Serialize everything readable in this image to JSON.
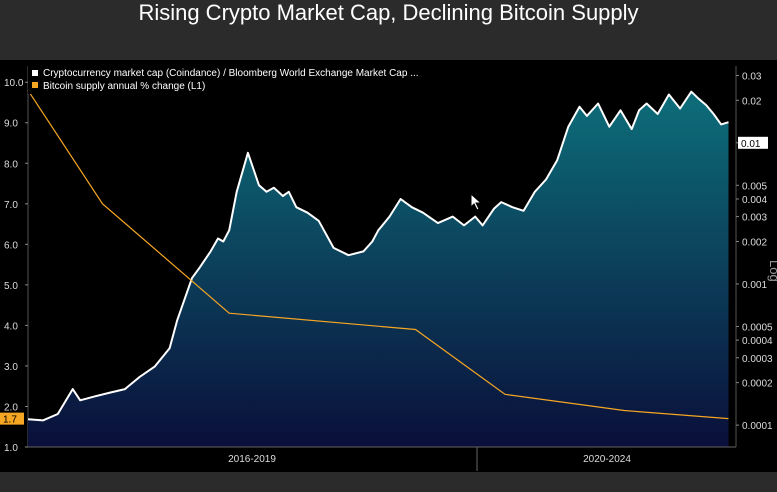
{
  "title": "Rising Crypto Market Cap, Declining Bitcoin Supply",
  "colors": {
    "background": "#000000",
    "page": "#2b2b2b",
    "ratio_line": "#ffffff",
    "ratio_fill_top": "#0d6e7a",
    "ratio_fill_bottom": "#0a0f3a",
    "supply_line": "#f5a623",
    "last_value_badge": "#f5a623"
  },
  "chart_data": {
    "type": "area",
    "title": "Rising Crypto Market Cap, Declining Bitcoin Supply",
    "legend": {
      "placement": "top-left",
      "entries": [
        "Cryptocurrency market cap (Coindance) / Bloomberg World Exchange Market Cap ...",
        "Bitcoin supply annual % change  (L1)"
      ]
    },
    "x_range": [
      2014.0,
      2023.5
    ],
    "x_tick_labels": [
      "2016-2019",
      "2020-2024"
    ],
    "left_axis": {
      "scale": "linear",
      "range": [
        1.0,
        10.4
      ],
      "ticks": [
        "1.0",
        "2.0",
        "3.0",
        "4.0",
        "5.0",
        "6.0",
        "7.0",
        "8.0",
        "9.0",
        "10.0"
      ],
      "last_value_label": "1.7",
      "last_value": 1.7
    },
    "right_axis": {
      "scale": "log",
      "label": "Log",
      "range": [
        7e-05,
        0.035
      ],
      "ticks": [
        "0.03",
        "0.02",
        "0.01",
        "0.005",
        "0.004",
        "0.003",
        "0.002",
        "0.001",
        "0.0005",
        "0.0004",
        "0.0003",
        "0.0002",
        "0.0001"
      ],
      "tick_values": [
        0.03,
        0.02,
        0.01,
        0.005,
        0.004,
        0.003,
        0.002,
        0.001,
        0.0005,
        0.0004,
        0.0003,
        0.0002,
        0.0001
      ],
      "last_value_label": "0.01",
      "last_value": 0.01
    },
    "series": [
      {
        "name": "Cryptocurrency market cap (Coindance) / Bloomberg World Exchange Market Cap ...",
        "axis": "right",
        "style": "area",
        "x": [
          2014.0,
          2014.2,
          2014.4,
          2014.6,
          2014.7,
          2014.9,
          2015.1,
          2015.3,
          2015.5,
          2015.7,
          2015.9,
          2016.0,
          2016.2,
          2016.3,
          2016.45,
          2016.55,
          2016.62,
          2016.7,
          2016.8,
          2016.95,
          2017.1,
          2017.2,
          2017.3,
          2017.42,
          2017.5,
          2017.6,
          2017.75,
          2017.9,
          2018.1,
          2018.3,
          2018.5,
          2018.62,
          2018.7,
          2018.85,
          2019.0,
          2019.15,
          2019.3,
          2019.5,
          2019.7,
          2019.85,
          2020.0,
          2020.1,
          2020.25,
          2020.35,
          2020.5,
          2020.65,
          2020.8,
          2020.95,
          2021.1,
          2021.25,
          2021.4,
          2021.5,
          2021.65,
          2021.8,
          2021.95,
          2022.1,
          2022.2,
          2022.3,
          2022.45,
          2022.6,
          2022.75,
          2022.9,
          2023.0,
          2023.1,
          2023.2,
          2023.3,
          2023.4
        ],
        "y": [
          0.00011,
          0.000108,
          0.00012,
          0.00018,
          0.00015,
          0.00016,
          0.00017,
          0.00018,
          0.00022,
          0.00026,
          0.00035,
          0.00055,
          0.0011,
          0.0013,
          0.0017,
          0.0021,
          0.002,
          0.0024,
          0.0045,
          0.0085,
          0.005,
          0.0045,
          0.0048,
          0.0042,
          0.0045,
          0.0035,
          0.0032,
          0.0028,
          0.0018,
          0.0016,
          0.0017,
          0.002,
          0.0024,
          0.003,
          0.004,
          0.0035,
          0.0032,
          0.0027,
          0.003,
          0.0026,
          0.003,
          0.0026,
          0.0034,
          0.0038,
          0.0035,
          0.0033,
          0.0045,
          0.0055,
          0.0075,
          0.013,
          0.018,
          0.0155,
          0.019,
          0.013,
          0.017,
          0.0125,
          0.017,
          0.019,
          0.016,
          0.022,
          0.0175,
          0.023,
          0.0205,
          0.0185,
          0.016,
          0.0135,
          0.014
        ]
      },
      {
        "name": "Bitcoin supply annual % change  (L1)",
        "axis": "left",
        "style": "line",
        "x": [
          2014.0,
          2015.0,
          2016.7,
          2019.2,
          2020.4,
          2022.0,
          2023.4
        ],
        "y": [
          9.8,
          7.0,
          4.3,
          3.9,
          2.3,
          1.9,
          1.7
        ]
      }
    ]
  }
}
